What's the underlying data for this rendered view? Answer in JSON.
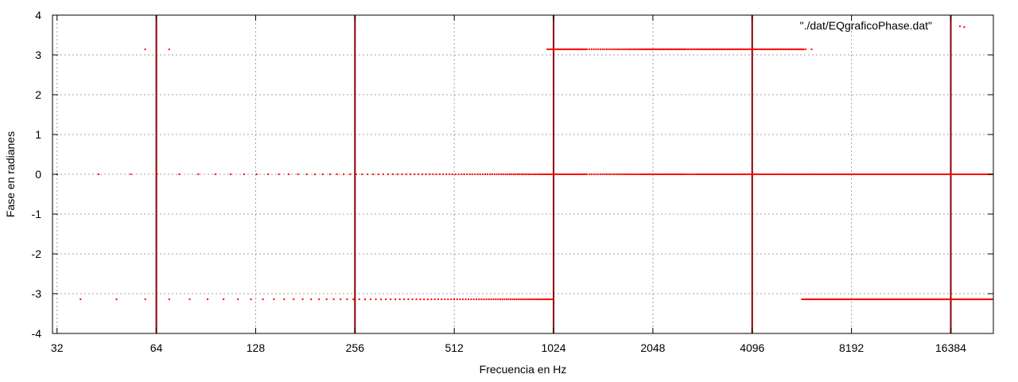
{
  "chart_data": {
    "type": "scatter",
    "title": "",
    "xlabel": "Frecuencia en Hz",
    "ylabel": "Fase en radianes",
    "xscale": "log2",
    "xlim": [
      31,
      22050
    ],
    "ylim": [
      -4,
      4
    ],
    "grid": true,
    "legend_position": "top-right",
    "colors": {
      "points": "#ff0000",
      "marker_lines": "#8b0000",
      "grid": "#a0a0a0"
    },
    "x_ticks": [
      32,
      64,
      128,
      256,
      512,
      1024,
      2048,
      4096,
      8192,
      16384
    ],
    "x_tick_labels": [
      "32",
      "64",
      "128",
      "256",
      "512",
      "1024",
      "2048",
      "4096",
      "8192",
      "16384"
    ],
    "y_ticks": [
      -4,
      -3,
      -2,
      -1,
      0,
      1,
      2,
      3,
      4
    ],
    "y_tick_labels": [
      "-4",
      "-3",
      "-2",
      "-1",
      "0",
      "1",
      "2",
      "3",
      "4"
    ],
    "vertical_lines": [
      64,
      256,
      1024,
      4096,
      16384
    ],
    "series": [
      {
        "name": "\"./dat/EQgraficoPhase.dat\"",
        "marker": "dot",
        "note_ranges": [
          {
            "y": 0,
            "x_from": 32,
            "x_to": 22050,
            "spacing_hz": 10.77
          },
          {
            "y": -3.1416,
            "x_from": 37.7,
            "x_to": 1018,
            "spacing_hz": 10.77
          },
          {
            "y": 3.1416,
            "x_from": 980,
            "x_to": 5900,
            "spacing_hz": 10.77
          },
          {
            "y": -3.1416,
            "x_from": 5800,
            "x_to": 22050,
            "spacing_hz": 10.77
          }
        ],
        "isolated_points": [
          {
            "x": 59.2,
            "y": 3.1416
          },
          {
            "x": 70.0,
            "y": 3.1416
          },
          {
            "x": 5950,
            "y": 3.1416
          },
          {
            "x": 6200,
            "y": 3.1416
          },
          {
            "x": 18000,
            "y": 3.7
          }
        ]
      }
    ]
  }
}
